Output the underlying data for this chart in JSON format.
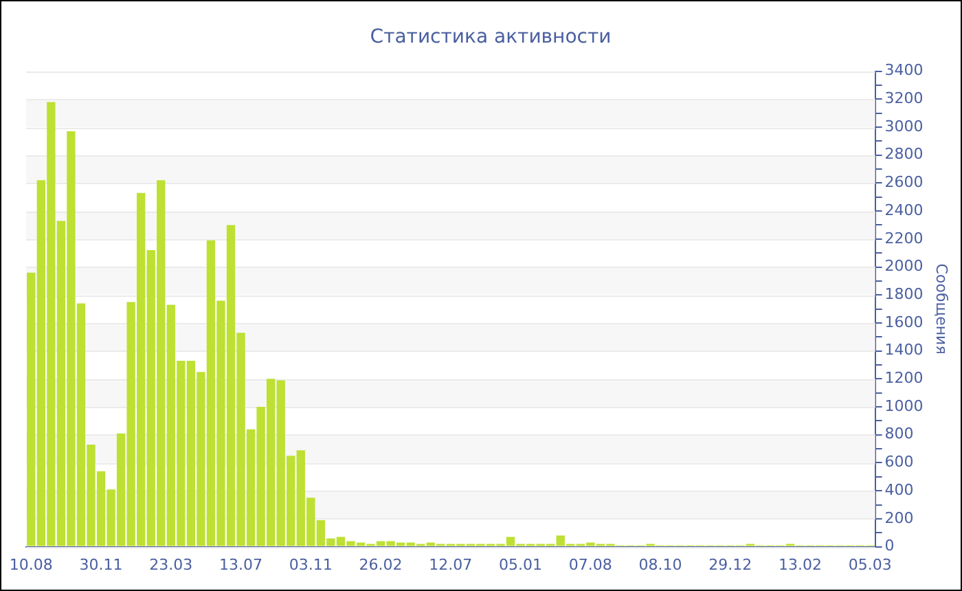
{
  "chart_data": {
    "type": "bar",
    "title": "Статистика активности",
    "ylabel": "Сообщения",
    "categories": [
      "10.08",
      null,
      null,
      null,
      null,
      null,
      null,
      "30.11",
      null,
      null,
      null,
      null,
      null,
      null,
      "23.03",
      null,
      null,
      null,
      null,
      null,
      null,
      "13.07",
      null,
      null,
      null,
      null,
      null,
      null,
      "03.11",
      null,
      null,
      null,
      null,
      null,
      null,
      "26.02",
      null,
      null,
      null,
      null,
      null,
      null,
      "12.07",
      null,
      null,
      null,
      null,
      null,
      null,
      "05.01",
      null,
      null,
      null,
      null,
      null,
      null,
      "07.08",
      null,
      null,
      null,
      null,
      null,
      null,
      "08.10",
      null,
      null,
      null,
      null,
      null,
      null,
      "29.12",
      null,
      null,
      null,
      null,
      null,
      null,
      "13.02",
      null,
      null,
      null,
      null,
      null,
      null,
      "05.03"
    ],
    "values": [
      1960,
      2620,
      3180,
      2330,
      2970,
      1740,
      730,
      540,
      410,
      810,
      1750,
      2530,
      2120,
      2620,
      1730,
      1330,
      1330,
      1250,
      2190,
      1760,
      2300,
      1530,
      840,
      1000,
      1200,
      1190,
      650,
      690,
      350,
      190,
      60,
      70,
      40,
      30,
      20,
      40,
      40,
      30,
      30,
      20,
      30,
      20,
      20,
      20,
      20,
      20,
      20,
      20,
      70,
      20,
      20,
      20,
      20,
      80,
      20,
      20,
      30,
      20,
      20,
      10,
      10,
      10,
      20,
      10,
      10,
      10,
      10,
      10,
      10,
      10,
      10,
      10,
      20,
      10,
      10,
      10,
      20,
      10,
      10,
      10,
      10,
      10,
      10,
      10,
      10
    ],
    "color": "#bde033",
    "ylim": [
      0,
      3400
    ],
    "yticks": [
      0,
      {
        "value": 100,
        "label": null
      },
      200,
      {
        "value": 300,
        "label": null
      },
      400,
      {
        "value": 500,
        "label": null
      },
      600,
      {
        "value": 700,
        "label": null
      },
      800,
      {
        "value": 900,
        "label": null
      },
      1000,
      {
        "value": 1100,
        "label": null
      },
      1200,
      {
        "value": 1300,
        "label": null
      },
      1400,
      {
        "value": 1500,
        "label": null
      },
      1600,
      {
        "value": 1700,
        "label": null
      },
      1800,
      {
        "value": 1900,
        "label": null
      },
      2000,
      {
        "value": 2100,
        "label": null
      },
      2200,
      {
        "value": 2300,
        "label": null
      },
      2400,
      {
        "value": 2500,
        "label": null
      },
      2600,
      {
        "value": 2700,
        "label": null
      },
      2800,
      {
        "value": 2900,
        "label": null
      },
      3000,
      {
        "value": 3100,
        "label": null
      },
      3200,
      {
        "value": 3300,
        "label": null
      },
      3400
    ],
    "grid": "y",
    "legend": false
  }
}
